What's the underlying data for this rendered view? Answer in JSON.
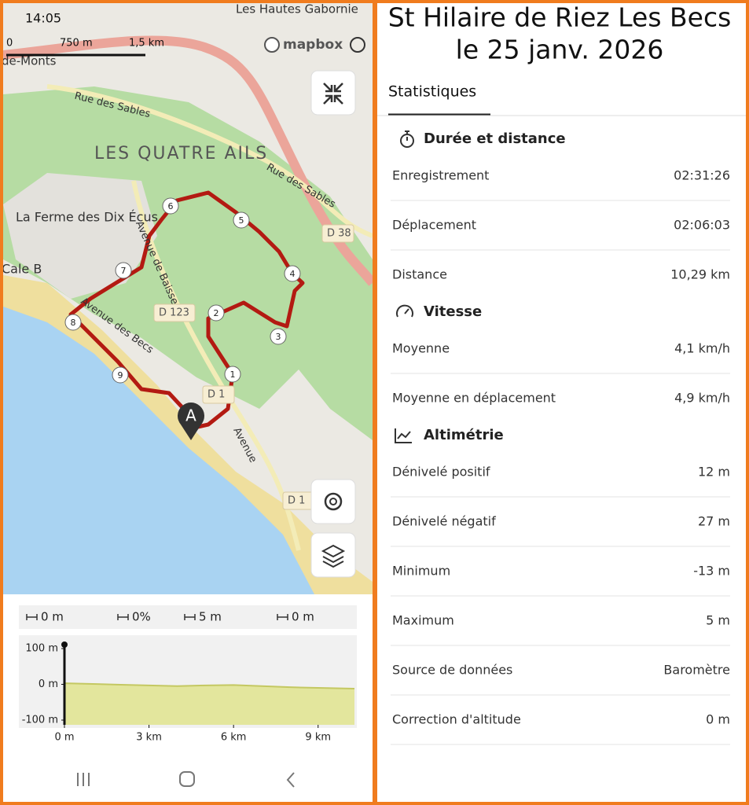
{
  "status_bar": {
    "time": "14:05"
  },
  "map": {
    "labels": [
      "Les Hautes Gabornie",
      "de-Monts",
      "Rue des Sables",
      "LES QUATRE AILS",
      "Rue des Sables",
      "La Ferme des Dix Écus",
      "Cale B",
      "Avenue de Baisse",
      "Avenue des Becs",
      "Avenue"
    ],
    "road_labels": [
      "D 38",
      "D 123",
      "D 1",
      "D 1"
    ],
    "scale": [
      "0",
      "750 m",
      "1,5 km"
    ],
    "attribution": "mapbox",
    "route_markers": [
      "1",
      "2",
      "3",
      "4",
      "5",
      "6",
      "7",
      "8",
      "9"
    ],
    "start_marker": "A"
  },
  "track_stats": {
    "distance": "0 m",
    "slope": "0%",
    "ascent": "5 m",
    "descent": "0 m"
  },
  "elevation_profile": {
    "x": [
      0,
      1,
      2,
      3,
      4,
      5,
      6,
      7,
      8,
      9,
      10.29
    ],
    "values": [
      3,
      1,
      -1,
      -3,
      -5,
      -3,
      -2,
      -5,
      -8,
      -10,
      -12
    ],
    "xlim": [
      0,
      10.29
    ],
    "ylim": [
      -100,
      100
    ],
    "xticks": [
      {
        "value": 0,
        "label": "0 m"
      },
      {
        "value": 3,
        "label": "3 km"
      },
      {
        "value": 6,
        "label": "6 km"
      },
      {
        "value": 9,
        "label": "9 km"
      }
    ],
    "yticks": [
      {
        "value": 100,
        "label": "100 m"
      },
      {
        "value": 0,
        "label": "0 m"
      },
      {
        "value": -100,
        "label": "-100 m"
      }
    ]
  },
  "details": {
    "title": [
      "St Hilaire de Riez Les Becs",
      "le 25 janv. 2026"
    ],
    "tab": "Statistiques",
    "sections": [
      {
        "title": "Durée et distance",
        "rows": [
          [
            "Enregistrement",
            "02:31:26"
          ],
          [
            "Déplacement",
            "02:06:03"
          ],
          [
            "Distance",
            "10,29 km"
          ]
        ]
      },
      {
        "title": "Vitesse",
        "rows": [
          [
            "Moyenne",
            "4,1 km/h"
          ],
          [
            "Moyenne en déplacement",
            "4,9 km/h"
          ]
        ]
      },
      {
        "title": "Altimétrie",
        "rows": [
          [
            "Dénivelé positif",
            "12 m"
          ],
          [
            "Dénivelé négatif",
            "27 m"
          ],
          [
            "Minimum",
            "-13 m"
          ],
          [
            "Maximum",
            "5 m"
          ],
          [
            "Source de données",
            "Baromètre"
          ],
          [
            "Correction d'altitude",
            "0 m"
          ]
        ]
      }
    ]
  }
}
